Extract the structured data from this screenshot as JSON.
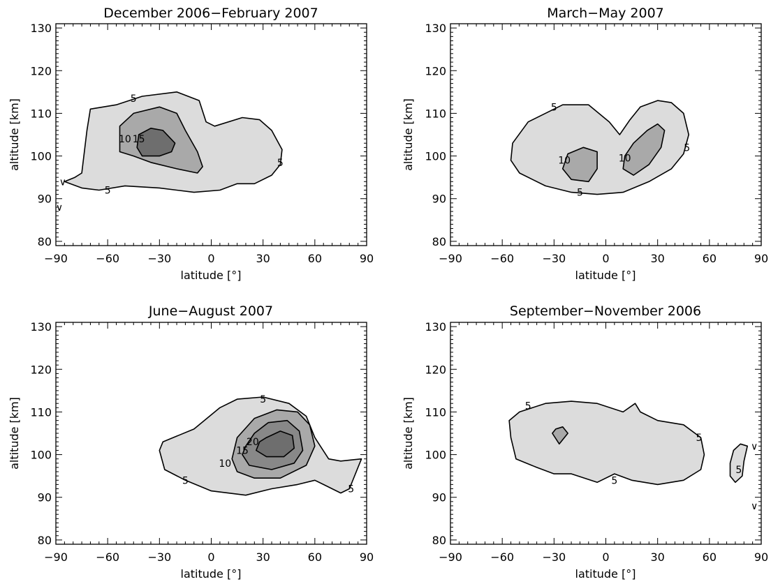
{
  "chart_data": [
    {
      "type": "contour",
      "title": "December 2006−February 2007",
      "xlabel": "latitude [°]",
      "ylabel": "altitude [km]",
      "xlim": [
        -90,
        90
      ],
      "ylim": [
        79,
        131
      ],
      "xticks": [
        "−90",
        "−60",
        "−30",
        "0",
        "30",
        "60",
        "90"
      ],
      "yticks": [
        "80",
        "90",
        "100",
        "110",
        "120",
        "130"
      ],
      "levels": [
        {
          "level": 5,
          "fill": "#dcdcdc",
          "polygons": [
            [
              [
                -85,
                94
              ],
              [
                -75,
                92.5
              ],
              [
                -65,
                92
              ],
              [
                -50,
                93
              ],
              [
                -30,
                92.5
              ],
              [
                -10,
                91.5
              ],
              [
                5,
                92
              ],
              [
                15,
                93.5
              ],
              [
                25,
                93.5
              ],
              [
                35,
                95.5
              ],
              [
                40,
                98
              ],
              [
                41,
                101.5
              ],
              [
                35,
                106
              ],
              [
                28,
                108.5
              ],
              [
                18,
                109
              ],
              [
                2,
                107
              ],
              [
                -3,
                108
              ],
              [
                -7,
                113
              ],
              [
                -20,
                115
              ],
              [
                -40,
                114
              ],
              [
                -55,
                112
              ],
              [
                -70,
                111
              ],
              [
                -72,
                106
              ],
              [
                -75,
                96
              ],
              [
                -79,
                95
              ]
            ]
          ]
        },
        {
          "level": 10,
          "fill": "#a9a9a9",
          "polygons": [
            [
              [
                -53,
                101
              ],
              [
                -45,
                100
              ],
              [
                -35,
                98.5
              ],
              [
                -20,
                97
              ],
              [
                -8,
                96
              ],
              [
                -5,
                97.5
              ],
              [
                -8,
                101
              ],
              [
                -15,
                106
              ],
              [
                -20,
                110
              ],
              [
                -30,
                111.5
              ],
              [
                -45,
                110
              ],
              [
                -53,
                107
              ]
            ]
          ]
        },
        {
          "level": 15,
          "fill": "#6e6e6e",
          "polygons": [
            [
              [
                -43,
                102
              ],
              [
                -40,
                100
              ],
              [
                -30,
                100
              ],
              [
                -23,
                101
              ],
              [
                -21,
                103
              ],
              [
                -28,
                106
              ],
              [
                -35,
                106.5
              ],
              [
                -42,
                105
              ]
            ]
          ]
        }
      ],
      "labels": [
        {
          "text": "5",
          "x": -45,
          "y": 113.5
        },
        {
          "text": "10",
          "x": -50,
          "y": 104
        },
        {
          "text": "15",
          "x": -42,
          "y": 104
        },
        {
          "text": "5",
          "x": -60,
          "y": 92
        },
        {
          "text": "5",
          "x": 40,
          "y": 98.5
        },
        {
          "text": "∨",
          "x": -86,
          "y": 94
        },
        {
          "text": "∨",
          "x": -88,
          "y": 88
        }
      ]
    },
    {
      "type": "contour",
      "title": "March−May 2007",
      "xlabel": "latitude [°]",
      "ylabel": "altitude [km]",
      "xlim": [
        -90,
        90
      ],
      "ylim": [
        79,
        131
      ],
      "xticks": [
        "−90",
        "−60",
        "−30",
        "0",
        "30",
        "60",
        "90"
      ],
      "yticks": [
        "80",
        "90",
        "100",
        "110",
        "120",
        "130"
      ],
      "levels": [
        {
          "level": 5,
          "fill": "#dcdcdc",
          "polygons": [
            [
              [
                -55,
                99
              ],
              [
                -50,
                96
              ],
              [
                -35,
                93
              ],
              [
                -20,
                91.5
              ],
              [
                -5,
                91
              ],
              [
                10,
                91.5
              ],
              [
                25,
                94
              ],
              [
                38,
                97
              ],
              [
                45,
                100.5
              ],
              [
                48,
                105
              ],
              [
                45,
                110
              ],
              [
                38,
                112.5
              ],
              [
                30,
                113
              ],
              [
                20,
                111.5
              ],
              [
                14,
                108.5
              ],
              [
                8,
                105
              ],
              [
                2,
                108
              ],
              [
                -10,
                112
              ],
              [
                -25,
                112
              ],
              [
                -45,
                108
              ],
              [
                -54,
                103
              ]
            ]
          ]
        },
        {
          "level": 10,
          "fill": "#a9a9a9",
          "polygons": [
            [
              [
                -25,
                97
              ],
              [
                -20,
                94.5
              ],
              [
                -10,
                94
              ],
              [
                -5,
                97
              ],
              [
                -5,
                101
              ],
              [
                -13,
                102
              ],
              [
                -22,
                100.5
              ]
            ]
          ]
        },
        {
          "level": 10,
          "fill": "#a9a9a9",
          "polygons": [
            [
              [
                10,
                97
              ],
              [
                16,
                95.5
              ],
              [
                25,
                98
              ],
              [
                32,
                102
              ],
              [
                34,
                106
              ],
              [
                30,
                107.5
              ],
              [
                24,
                106
              ],
              [
                16,
                103
              ],
              [
                11,
                100
              ]
            ]
          ]
        }
      ],
      "labels": [
        {
          "text": "5",
          "x": -30,
          "y": 111.5
        },
        {
          "text": "10",
          "x": -24,
          "y": 99
        },
        {
          "text": "10",
          "x": 11,
          "y": 99.5
        },
        {
          "text": "5",
          "x": -15,
          "y": 91.5
        },
        {
          "text": "5",
          "x": 47,
          "y": 102
        }
      ]
    },
    {
      "type": "contour",
      "title": "June−August 2007",
      "xlabel": "latitude [°]",
      "ylabel": "altitude [km]",
      "xlim": [
        -90,
        90
      ],
      "ylim": [
        79,
        131
      ],
      "xticks": [
        "−90",
        "−60",
        "−30",
        "0",
        "30",
        "60",
        "90"
      ],
      "yticks": [
        "80",
        "90",
        "100",
        "110",
        "120",
        "130"
      ],
      "levels": [
        {
          "level": 5,
          "fill": "#dcdcdc",
          "polygons": [
            [
              [
                -30,
                101
              ],
              [
                -27,
                96.5
              ],
              [
                -15,
                94
              ],
              [
                0,
                91.5
              ],
              [
                20,
                90.5
              ],
              [
                35,
                92
              ],
              [
                50,
                93
              ],
              [
                60,
                94
              ],
              [
                65,
                93
              ],
              [
                75,
                91
              ],
              [
                80,
                92
              ],
              [
                85,
                97
              ],
              [
                87,
                99
              ],
              [
                75,
                98.5
              ],
              [
                68,
                99
              ],
              [
                60,
                104
              ],
              [
                55,
                109
              ],
              [
                45,
                112
              ],
              [
                30,
                113.5
              ],
              [
                15,
                113
              ],
              [
                5,
                111
              ],
              [
                -10,
                106
              ],
              [
                -28,
                103
              ]
            ]
          ]
        },
        {
          "level": 10,
          "fill": "#a9a9a9",
          "polygons": [
            [
              [
                12,
                99
              ],
              [
                15,
                96
              ],
              [
                25,
                94.5
              ],
              [
                40,
                94.5
              ],
              [
                55,
                97.5
              ],
              [
                60,
                102
              ],
              [
                57,
                107
              ],
              [
                50,
                110
              ],
              [
                38,
                110.5
              ],
              [
                25,
                108.5
              ],
              [
                15,
                104
              ]
            ]
          ]
        },
        {
          "level": 15,
          "fill": "#888888",
          "polygons": [
            [
              [
                18,
                100
              ],
              [
                22,
                97.5
              ],
              [
                35,
                96.5
              ],
              [
                48,
                98
              ],
              [
                53,
                101
              ],
              [
                51,
                105.5
              ],
              [
                44,
                108
              ],
              [
                33,
                107.5
              ],
              [
                25,
                105
              ],
              [
                20,
                102
              ]
            ]
          ]
        },
        {
          "level": 20,
          "fill": "#6e6e6e",
          "polygons": [
            [
              [
                26,
                101
              ],
              [
                32,
                99.5
              ],
              [
                42,
                99.5
              ],
              [
                48,
                101.5
              ],
              [
                47,
                104.5
              ],
              [
                40,
                105.5
              ],
              [
                32,
                104
              ],
              [
                28,
                103
              ]
            ]
          ]
        }
      ],
      "labels": [
        {
          "text": "5",
          "x": 30,
          "y": 113
        },
        {
          "text": "20",
          "x": 24,
          "y": 103
        },
        {
          "text": "15",
          "x": 18,
          "y": 101
        },
        {
          "text": "10",
          "x": 8,
          "y": 98
        },
        {
          "text": "5",
          "x": -15,
          "y": 94
        },
        {
          "text": "5",
          "x": 81,
          "y": 92
        }
      ]
    },
    {
      "type": "contour",
      "title": "September−November 2006",
      "xlabel": "latitude [°]",
      "ylabel": "altitude [km]",
      "xlim": [
        -90,
        90
      ],
      "ylim": [
        79,
        131
      ],
      "xticks": [
        "−90",
        "−60",
        "−30",
        "0",
        "30",
        "60",
        "90"
      ],
      "yticks": [
        "80",
        "90",
        "100",
        "110",
        "120",
        "130"
      ],
      "levels": [
        {
          "level": 5,
          "fill": "#dcdcdc",
          "polygons": [
            [
              [
                -55,
                104
              ],
              [
                -52,
                99
              ],
              [
                -40,
                97
              ],
              [
                -30,
                95.5
              ],
              [
                -20,
                95.5
              ],
              [
                -5,
                93.5
              ],
              [
                5,
                95.5
              ],
              [
                15,
                94
              ],
              [
                30,
                93
              ],
              [
                45,
                94
              ],
              [
                55,
                96.5
              ],
              [
                57,
                100
              ],
              [
                55,
                104
              ],
              [
                45,
                107
              ],
              [
                30,
                108
              ],
              [
                20,
                110
              ],
              [
                17,
                112
              ],
              [
                10,
                110
              ],
              [
                -5,
                112
              ],
              [
                -20,
                112.5
              ],
              [
                -35,
                112
              ],
              [
                -50,
                110
              ],
              [
                -56,
                108
              ]
            ]
          ]
        },
        {
          "level": 5,
          "fill": "#dcdcdc",
          "polygons": [
            [
              [
                72,
                95
              ],
              [
                75,
                93.5
              ],
              [
                79,
                95
              ],
              [
                80,
                98.5
              ],
              [
                82,
                102
              ],
              [
                78,
                102.5
              ],
              [
                74,
                101
              ],
              [
                72,
                98
              ]
            ]
          ]
        },
        {
          "level": 10,
          "fill": "#a9a9a9",
          "polygons": [
            [
              [
                -31,
                105
              ],
              [
                -27,
                102.5
              ],
              [
                -22,
                105
              ],
              [
                -25,
                106.5
              ],
              [
                -29,
                106
              ]
            ]
          ]
        }
      ],
      "labels": [
        {
          "text": "5",
          "x": -45,
          "y": 111.5
        },
        {
          "text": "5",
          "x": 54,
          "y": 104
        },
        {
          "text": "5",
          "x": 5,
          "y": 94
        },
        {
          "text": "5",
          "x": 77,
          "y": 96.5
        },
        {
          "text": "∨",
          "x": 86,
          "y": 102
        },
        {
          "text": "∨",
          "x": 86,
          "y": 88
        }
      ]
    }
  ]
}
